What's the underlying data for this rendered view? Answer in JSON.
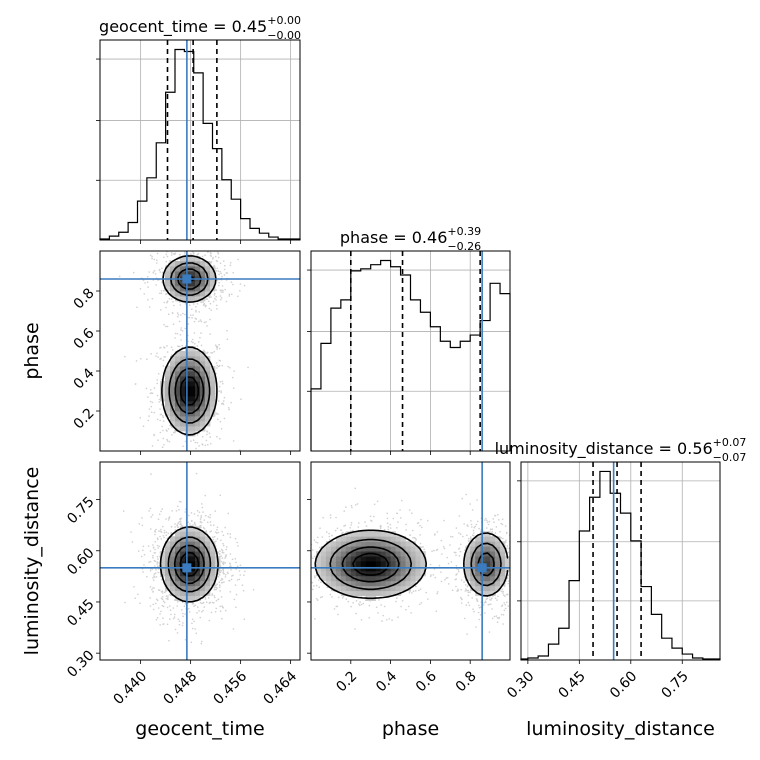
{
  "figure": {
    "type": "corner_plot",
    "truth_color": "#3b7bbf",
    "hist_color": "#000000",
    "contour_color": "#000000",
    "grid": true
  },
  "chart_data": [
    {
      "type": "histogram",
      "panel": "geocent_time-marginal",
      "parameter": "geocent_time",
      "title_name": "geocent_time",
      "title_value": "0.45",
      "title_plus": "+0.00",
      "title_minus": "−0.00",
      "xlim": [
        0.4335,
        0.4655
      ],
      "xticks": [
        0.44,
        0.448,
        0.456,
        0.464
      ],
      "x_tick_labels": [
        "0.440",
        "0.448",
        "0.456",
        "0.464"
      ],
      "xlabel": "geocent_time",
      "bin_edges": [
        0.4335,
        0.435,
        0.4365,
        0.438,
        0.4395,
        0.441,
        0.4425,
        0.444,
        0.4455,
        0.447,
        0.4485,
        0.45,
        0.4515,
        0.453,
        0.4545,
        0.456,
        0.4575,
        0.459,
        0.4605,
        0.462,
        0.4635,
        0.4655
      ],
      "counts": [
        0.005,
        0.02,
        0.04,
        0.09,
        0.2,
        0.32,
        0.5,
        0.76,
        0.98,
        0.97,
        0.86,
        0.6,
        0.47,
        0.31,
        0.21,
        0.11,
        0.06,
        0.035,
        0.015,
        0.005,
        0.005
      ],
      "quantiles": [
        0.4443,
        0.4484,
        0.4522
      ],
      "truth": 0.4474
    },
    {
      "type": "histogram",
      "panel": "phase-marginal",
      "parameter": "phase",
      "title_name": "phase",
      "title_value": "0.46",
      "title_plus": "+0.39",
      "title_minus": "−0.26",
      "xlim": [
        0.0,
        1.0
      ],
      "xticks": [
        0.2,
        0.4,
        0.6,
        0.8
      ],
      "x_tick_labels": [
        "0.2",
        "0.4",
        "0.6",
        "0.8"
      ],
      "xlabel": "phase",
      "bin_edges": [
        0.0,
        0.05,
        0.1,
        0.15,
        0.2,
        0.25,
        0.3,
        0.35,
        0.4,
        0.45,
        0.5,
        0.55,
        0.6,
        0.65,
        0.7,
        0.75,
        0.8,
        0.85,
        0.9,
        0.95,
        1.0
      ],
      "counts": [
        0.3,
        0.52,
        0.69,
        0.73,
        0.87,
        0.88,
        0.9,
        0.92,
        0.89,
        0.85,
        0.73,
        0.67,
        0.6,
        0.53,
        0.5,
        0.53,
        0.56,
        0.63,
        0.81,
        0.76
      ],
      "quantiles": [
        0.2,
        0.46,
        0.85
      ],
      "truth": 0.86
    },
    {
      "type": "histogram",
      "panel": "luminosity_distance-marginal",
      "parameter": "luminosity_distance",
      "title_name": "luminosity_distance",
      "title_value": "0.56",
      "title_plus": "+0.07",
      "title_minus": "−0.07",
      "xlim": [
        0.28,
        0.86
      ],
      "xticks": [
        0.3,
        0.45,
        0.6,
        0.75
      ],
      "x_tick_labels": [
        "0.30",
        "0.45",
        "0.60",
        "0.75"
      ],
      "xlabel": "luminosity_distance",
      "bin_edges": [
        0.28,
        0.3,
        0.33,
        0.36,
        0.39,
        0.42,
        0.45,
        0.48,
        0.51,
        0.54,
        0.57,
        0.6,
        0.63,
        0.66,
        0.69,
        0.72,
        0.75,
        0.78,
        0.81,
        0.86
      ],
      "counts": [
        0.005,
        0.01,
        0.02,
        0.08,
        0.16,
        0.4,
        0.65,
        0.82,
        0.95,
        0.84,
        0.74,
        0.6,
        0.37,
        0.23,
        0.11,
        0.06,
        0.03,
        0.01,
        0.005
      ],
      "quantiles": [
        0.49,
        0.56,
        0.63
      ],
      "truth": 0.55
    },
    {
      "type": "contour_2d",
      "panel": "geocent_time-vs-phase",
      "x_param": "geocent_time",
      "y_param": "phase",
      "xlim": [
        0.4335,
        0.4655
      ],
      "ylim": [
        0.0,
        1.0
      ],
      "yticks": [
        0.2,
        0.4,
        0.6,
        0.8
      ],
      "y_tick_labels": [
        "0.2",
        "0.4",
        "0.6",
        "0.8"
      ],
      "ylabel": "phase",
      "truth": [
        0.4474,
        0.86
      ],
      "modes": [
        {
          "x": 0.4478,
          "y": 0.3,
          "sx": 0.0022,
          "sy": 0.11,
          "w": 1.0
        },
        {
          "x": 0.4478,
          "y": 0.86,
          "sx": 0.0022,
          "sy": 0.06,
          "w": 0.85
        }
      ]
    },
    {
      "type": "contour_2d",
      "panel": "geocent_time-vs-luminosity_distance",
      "x_param": "geocent_time",
      "y_param": "luminosity_distance",
      "xlim": [
        0.4335,
        0.4655
      ],
      "ylim": [
        0.28,
        0.86
      ],
      "yticks": [
        0.3,
        0.45,
        0.6,
        0.75
      ],
      "y_tick_labels": [
        "0.30",
        "0.45",
        "0.60",
        "0.75"
      ],
      "ylabel": "luminosity_distance",
      "truth": [
        0.4474,
        0.55
      ],
      "modes": [
        {
          "x": 0.4478,
          "y": 0.56,
          "sx": 0.0023,
          "sy": 0.055,
          "w": 1.0
        }
      ]
    },
    {
      "type": "contour_2d",
      "panel": "phase-vs-luminosity_distance",
      "x_param": "phase",
      "y_param": "luminosity_distance",
      "xlim": [
        0.0,
        1.0
      ],
      "ylim": [
        0.28,
        0.86
      ],
      "truth": [
        0.86,
        0.55
      ],
      "modes": [
        {
          "x": 0.3,
          "y": 0.56,
          "sx": 0.14,
          "sy": 0.05,
          "w": 1.0
        },
        {
          "x": 0.88,
          "y": 0.56,
          "sx": 0.06,
          "sy": 0.05,
          "w": 0.75
        }
      ]
    }
  ]
}
